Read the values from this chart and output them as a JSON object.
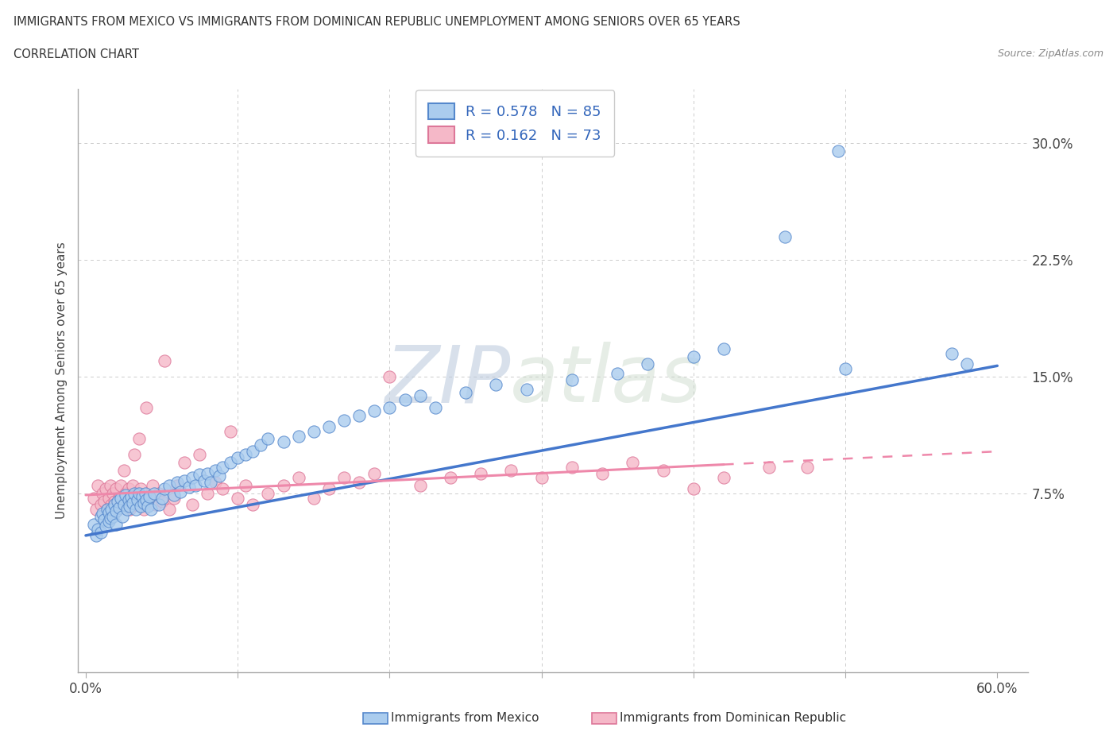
{
  "title_line1": "IMMIGRANTS FROM MEXICO VS IMMIGRANTS FROM DOMINICAN REPUBLIC UNEMPLOYMENT AMONG SENIORS OVER 65 YEARS",
  "title_line2": "CORRELATION CHART",
  "source_text": "Source: ZipAtlas.com",
  "ylabel": "Unemployment Among Seniors over 65 years",
  "yticks_labels": [
    "7.5%",
    "15.0%",
    "22.5%",
    "30.0%"
  ],
  "ytick_vals": [
    0.075,
    0.15,
    0.225,
    0.3
  ],
  "xtick_labels": [
    "0.0%",
    "60.0%"
  ],
  "xtick_vals": [
    0.0,
    0.6
  ],
  "xlim": [
    -0.005,
    0.62
  ],
  "ylim": [
    -0.04,
    0.335
  ],
  "color_mexico_face": "#aaccee",
  "color_mexico_edge": "#5588cc",
  "color_dr_face": "#f5b8c8",
  "color_dr_edge": "#dd7799",
  "trendline_color_mexico": "#4477cc",
  "trendline_color_dr": "#ee88aa",
  "legend_label_mexico": "Immigrants from Mexico",
  "legend_label_dr": "Immigrants from Dominican Republic",
  "r_mexico": "0.578",
  "n_mexico": "85",
  "r_dr": "0.162",
  "n_dr": "73",
  "watermark": "ZIPatlas",
  "watermark_color": "#c8d4e4",
  "grid_color": "#cccccc",
  "spine_color": "#aaaaaa",
  "trend_mx_x0": 0.0,
  "trend_mx_y0": 0.048,
  "trend_mx_x1": 0.6,
  "trend_mx_y1": 0.157,
  "trend_dr_x0": 0.0,
  "trend_dr_y0": 0.074,
  "trend_dr_x1": 0.6,
  "trend_dr_y1": 0.102
}
